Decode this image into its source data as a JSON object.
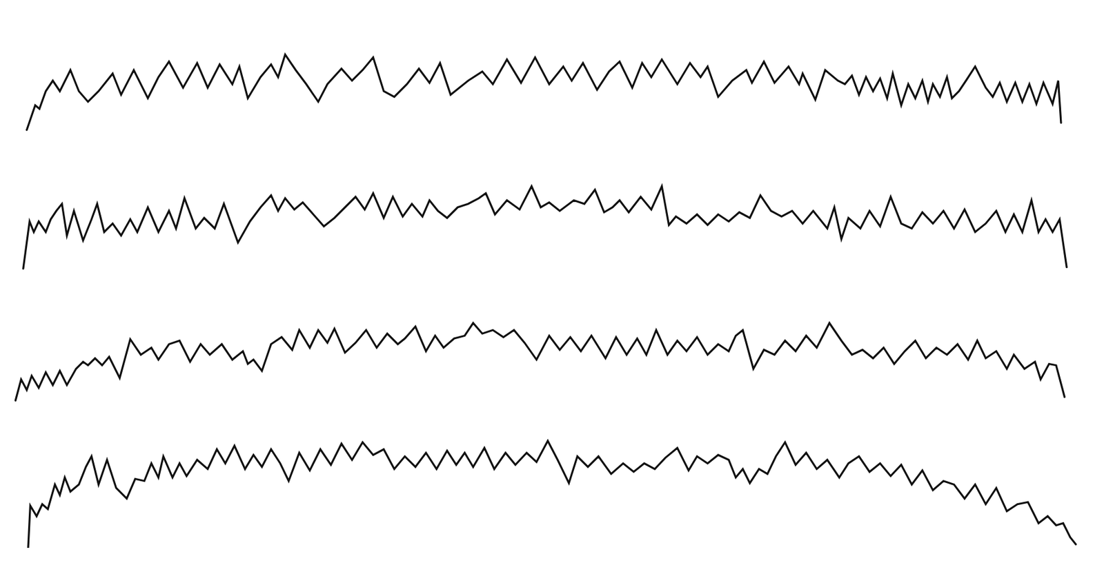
{
  "chart_data": [
    {
      "type": "line",
      "color": "#111111",
      "tick_labels": false,
      "xlim": [
        0,
        1568
      ],
      "ylim": [
        0,
        160
      ],
      "x": [
        38,
        50,
        56,
        65,
        75,
        85,
        100,
        112,
        125,
        140,
        160,
        172,
        190,
        210,
        225,
        240,
        260,
        280,
        295,
        312,
        330,
        340,
        352,
        370,
        385,
        395,
        405,
        420,
        435,
        452,
        465,
        485,
        500,
        515,
        530,
        545,
        560,
        578,
        595,
        610,
        625,
        640,
        665,
        685,
        700,
        720,
        740,
        760,
        780,
        800,
        812,
        828,
        848,
        865,
        880,
        898,
        912,
        925,
        940,
        962,
        980,
        995,
        1005,
        1020,
        1040,
        1060,
        1068,
        1085,
        1100,
        1120,
        1135,
        1140,
        1158,
        1172,
        1190,
        1200,
        1210,
        1220,
        1230,
        1240,
        1250,
        1260,
        1268,
        1280,
        1290,
        1300,
        1310,
        1318,
        1325,
        1335,
        1345,
        1352,
        1362,
        1372,
        1385,
        1400,
        1410,
        1420,
        1430,
        1442,
        1452,
        1462,
        1472,
        1482,
        1495,
        1503,
        1507
      ],
      "values": [
        5,
        40,
        35,
        60,
        75,
        60,
        90,
        60,
        45,
        60,
        85,
        55,
        90,
        50,
        80,
        102,
        65,
        100,
        65,
        98,
        70,
        95,
        50,
        80,
        98,
        80,
        112,
        90,
        70,
        45,
        70,
        92,
        75,
        90,
        108,
        60,
        52,
        70,
        92,
        72,
        100,
        55,
        75,
        88,
        70,
        105,
        72,
        108,
        70,
        95,
        75,
        100,
        62,
        88,
        102,
        65,
        100,
        80,
        105,
        70,
        100,
        80,
        95,
        52,
        75,
        90,
        72,
        102,
        72,
        95,
        70,
        85,
        48,
        90,
        75,
        70,
        82,
        55,
        80,
        60,
        78,
        50,
        85,
        40,
        70,
        50,
        75,
        45,
        70,
        52,
        80,
        50,
        60,
        75,
        95,
        65,
        52,
        72,
        45,
        72,
        45,
        70,
        42,
        72,
        42,
        75,
        15
      ]
    },
    {
      "type": "line",
      "color": "#111111",
      "tick_labels": false,
      "xlim": [
        0,
        1568
      ],
      "ylim": [
        0,
        160
      ],
      "x": [
        33,
        42,
        48,
        55,
        65,
        72,
        80,
        88,
        95,
        105,
        118,
        130,
        138,
        148,
        160,
        172,
        185,
        195,
        210,
        225,
        240,
        250,
        262,
        278,
        290,
        305,
        318,
        338,
        355,
        370,
        385,
        395,
        405,
        418,
        430,
        445,
        460,
        475,
        490,
        505,
        518,
        530,
        545,
        558,
        572,
        585,
        600,
        610,
        622,
        635,
        650,
        665,
        680,
        690,
        703,
        720,
        738,
        755,
        768,
        780,
        795,
        815,
        830,
        845,
        858,
        870,
        880,
        893,
        910,
        925,
        940,
        950,
        960,
        975,
        990,
        1005,
        1020,
        1035,
        1050,
        1065,
        1080,
        1095,
        1110,
        1125,
        1140,
        1155,
        1175,
        1185,
        1195,
        1205,
        1222,
        1235,
        1250,
        1265,
        1280,
        1295,
        1310,
        1325,
        1340,
        1355,
        1370,
        1385,
        1400,
        1415,
        1428,
        1440,
        1452,
        1465,
        1475,
        1485,
        1495,
        1505,
        1515
      ],
      "values": [
        8,
        75,
        60,
        75,
        60,
        78,
        90,
        100,
        55,
        90,
        48,
        78,
        100,
        60,
        72,
        55,
        78,
        60,
        95,
        60,
        90,
        65,
        108,
        65,
        80,
        65,
        100,
        45,
        75,
        95,
        112,
        90,
        108,
        92,
        102,
        85,
        68,
        80,
        95,
        110,
        92,
        115,
        80,
        110,
        82,
        100,
        82,
        105,
        90,
        80,
        95,
        100,
        108,
        115,
        85,
        105,
        92,
        125,
        95,
        102,
        90,
        105,
        100,
        120,
        88,
        95,
        105,
        88,
        110,
        92,
        125,
        70,
        82,
        72,
        85,
        70,
        85,
        75,
        88,
        80,
        112,
        90,
        82,
        90,
        72,
        90,
        65,
        95,
        50,
        80,
        65,
        90,
        68,
        110,
        72,
        65,
        88,
        72,
        90,
        65,
        92,
        60,
        72,
        90,
        60,
        85,
        60,
        105,
        60,
        78,
        60,
        78,
        10
      ]
    },
    {
      "type": "line",
      "color": "#111111",
      "tick_labels": false,
      "xlim": [
        0,
        1568
      ],
      "ylim": [
        0,
        160
      ],
      "x": [
        22,
        30,
        38,
        45,
        55,
        65,
        75,
        85,
        95,
        108,
        118,
        125,
        135,
        145,
        155,
        170,
        185,
        200,
        215,
        225,
        240,
        255,
        270,
        285,
        298,
        315,
        330,
        345,
        352,
        360,
        372,
        385,
        400,
        415,
        425,
        440,
        452,
        465,
        475,
        490,
        505,
        520,
        535,
        550,
        565,
        575,
        590,
        605,
        618,
        630,
        645,
        660,
        672,
        685,
        700,
        715,
        730,
        745,
        762,
        780,
        795,
        810,
        825,
        840,
        860,
        875,
        890,
        905,
        918,
        932,
        948,
        962,
        975,
        990,
        1005,
        1020,
        1035,
        1045,
        1055,
        1070,
        1085,
        1100,
        1115,
        1130,
        1145,
        1160,
        1178,
        1195,
        1210,
        1225,
        1240,
        1255,
        1270,
        1285,
        1300,
        1315,
        1330,
        1345,
        1360,
        1375,
        1388,
        1400,
        1415,
        1430,
        1440,
        1455,
        1470,
        1478,
        1490,
        1500,
        1512
      ],
      "values": [
        5,
        35,
        20,
        40,
        23,
        45,
        27,
        47,
        27,
        50,
        60,
        55,
        65,
        55,
        67,
        37,
        92,
        70,
        80,
        63,
        85,
        90,
        60,
        85,
        70,
        85,
        63,
        75,
        57,
        63,
        47,
        85,
        95,
        77,
        105,
        80,
        105,
        87,
        107,
        73,
        87,
        105,
        80,
        100,
        85,
        93,
        110,
        75,
        97,
        80,
        93,
        97,
        115,
        100,
        105,
        95,
        105,
        87,
        63,
        97,
        77,
        95,
        75,
        97,
        65,
        95,
        70,
        93,
        70,
        105,
        70,
        90,
        75,
        95,
        70,
        85,
        75,
        97,
        105,
        50,
        77,
        70,
        90,
        75,
        97,
        80,
        115,
        90,
        70,
        77,
        65,
        80,
        57,
        75,
        90,
        65,
        80,
        70,
        85,
        63,
        90,
        65,
        75,
        50,
        70,
        50,
        60,
        35,
        57,
        55,
        10
      ]
    },
    {
      "type": "line",
      "color": "#111111",
      "tick_labels": false,
      "xlim": [
        0,
        1568
      ],
      "ylim": [
        0,
        160
      ],
      "x": [
        40,
        43,
        52,
        60,
        68,
        78,
        85,
        92,
        100,
        112,
        122,
        130,
        140,
        152,
        165,
        180,
        192,
        205,
        215,
        225,
        232,
        245,
        255,
        265,
        280,
        295,
        308,
        320,
        333,
        348,
        360,
        372,
        385,
        398,
        410,
        425,
        440,
        455,
        470,
        485,
        500,
        515,
        530,
        545,
        560,
        575,
        590,
        605,
        620,
        635,
        648,
        660,
        672,
        688,
        702,
        718,
        732,
        748,
        762,
        778,
        792,
        808,
        820,
        835,
        850,
        868,
        885,
        900,
        915,
        930,
        945,
        962,
        978,
        990,
        1005,
        1020,
        1035,
        1045,
        1055,
        1065,
        1078,
        1090,
        1102,
        1115,
        1130,
        1145,
        1160,
        1175,
        1192,
        1205,
        1220,
        1235,
        1250,
        1265,
        1280,
        1295,
        1310,
        1325,
        1340,
        1355,
        1370,
        1385,
        1400,
        1415,
        1430,
        1445,
        1460,
        1475,
        1488,
        1500,
        1510,
        1520,
        1528
      ],
      "values": [
        0,
        60,
        45,
        62,
        55,
        90,
        75,
        100,
        80,
        90,
        115,
        130,
        90,
        125,
        85,
        70,
        98,
        95,
        120,
        100,
        130,
        100,
        120,
        102,
        125,
        112,
        140,
        120,
        145,
        112,
        132,
        115,
        140,
        120,
        95,
        135,
        110,
        140,
        118,
        148,
        125,
        150,
        132,
        140,
        112,
        130,
        115,
        135,
        112,
        138,
        118,
        135,
        115,
        142,
        112,
        135,
        118,
        135,
        122,
        152,
        125,
        92,
        130,
        115,
        130,
        105,
        120,
        108,
        120,
        112,
        128,
        142,
        110,
        130,
        120,
        132,
        125,
        100,
        112,
        92,
        112,
        105,
        130,
        150,
        118,
        135,
        112,
        125,
        100,
        120,
        130,
        108,
        120,
        102,
        118,
        90,
        110,
        82,
        95,
        90,
        70,
        90,
        62,
        85,
        52,
        62,
        65,
        35,
        45,
        32,
        35,
        15,
        5
      ]
    }
  ]
}
